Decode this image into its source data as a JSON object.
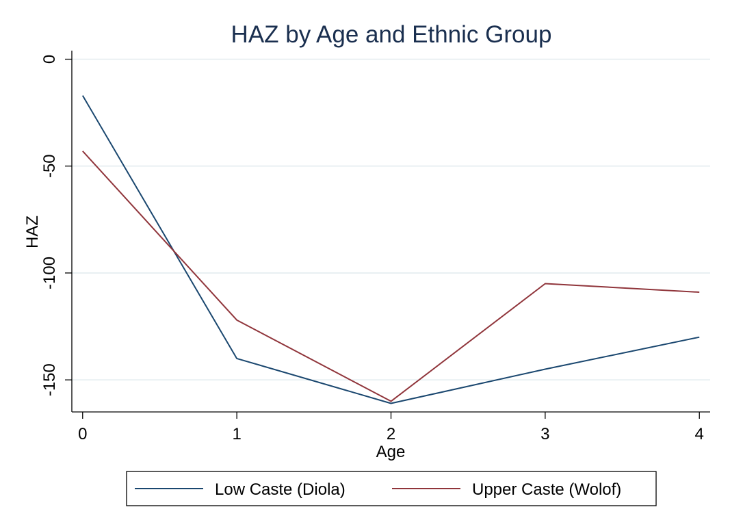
{
  "chart_data": {
    "type": "line",
    "title": "HAZ by Age and Ethnic Group",
    "xlabel": "Age",
    "ylabel": "HAZ",
    "x": [
      0,
      1,
      2,
      3,
      4
    ],
    "xticks": [
      "0",
      "1",
      "2",
      "3",
      "4"
    ],
    "yticks": [
      0,
      -50,
      -100,
      -150
    ],
    "ytick_labels": [
      "0",
      "-50",
      "-100",
      "-150"
    ],
    "xlim": [
      -0.07,
      4.07
    ],
    "ylim": [
      -165,
      4
    ],
    "grid": true,
    "legend_position": "bottom",
    "series": [
      {
        "name": "Low Caste (Diola)",
        "color": "#1a476f",
        "values": [
          -17,
          -140,
          -161,
          -145,
          -130
        ]
      },
      {
        "name": "Upper Caste (Wolof)",
        "color": "#90353b",
        "values": [
          -43,
          -122,
          -160,
          -105,
          -109
        ]
      }
    ]
  }
}
